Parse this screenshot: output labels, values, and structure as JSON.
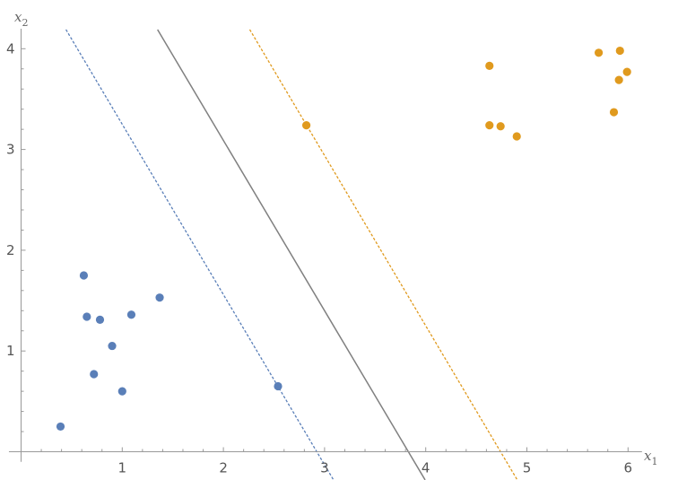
{
  "chart_data": {
    "type": "scatter",
    "title": "",
    "xlabel": "x",
    "xlabel_sub": "1",
    "ylabel": "x",
    "ylabel_sub": "2",
    "xlim": [
      -0.12,
      6.12
    ],
    "ylim": [
      -0.1,
      4.19
    ],
    "xticks": [
      "1",
      "2",
      "3",
      "4",
      "5",
      "6"
    ],
    "yticks": [
      "1",
      "2",
      "3",
      "4"
    ],
    "grid": false,
    "series": [
      {
        "color": "#5a7fb8",
        "points": [
          [
            0.39,
            0.25
          ],
          [
            0.62,
            1.75
          ],
          [
            0.65,
            1.34
          ],
          [
            0.78,
            1.31
          ],
          [
            0.72,
            0.77
          ],
          [
            0.9,
            1.05
          ],
          [
            1.0,
            0.6
          ],
          [
            1.09,
            1.36
          ],
          [
            1.37,
            1.53
          ],
          [
            2.54,
            0.65
          ]
        ]
      },
      {
        "color": "#e09a1e",
        "points": [
          [
            2.82,
            3.24
          ],
          [
            4.63,
            3.83
          ],
          [
            4.63,
            3.24
          ],
          [
            4.74,
            3.23
          ],
          [
            4.9,
            3.13
          ],
          [
            5.71,
            3.96
          ],
          [
            5.92,
            3.98
          ],
          [
            5.99,
            3.77
          ],
          [
            5.91,
            3.69
          ],
          [
            5.86,
            3.37
          ]
        ]
      }
    ],
    "lines": [
      {
        "style": "dashed",
        "color": "#5a7fb8",
        "intercept": 4.94,
        "slope": -1.69
      },
      {
        "style": "solid",
        "color": "#808080",
        "intercept": 6.47,
        "slope": -1.69
      },
      {
        "style": "dashed",
        "color": "#e09a1e",
        "intercept": 8.01,
        "slope": -1.69
      }
    ]
  }
}
